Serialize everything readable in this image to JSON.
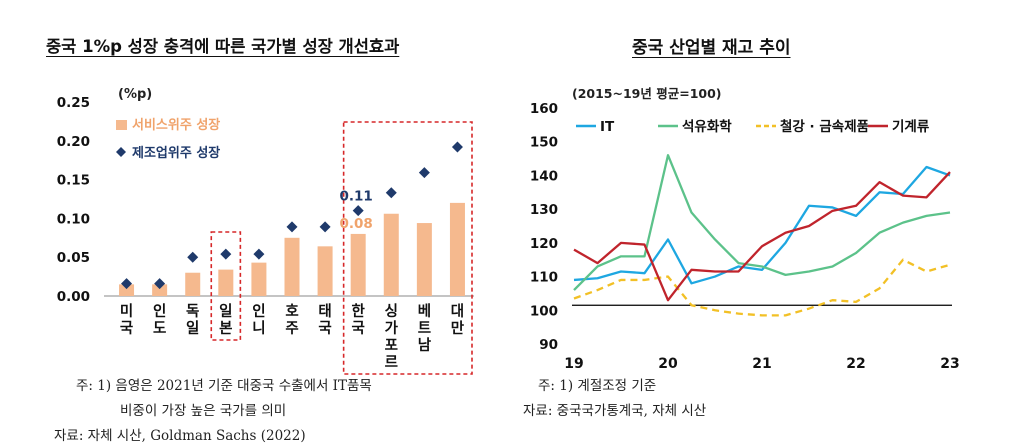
{
  "left_panel": {
    "title": "중국 1%p 성장 충격에 따른 국가별 성장 개선효과",
    "footnote_line1": "주: 1) 음영은 2021년 기준 대중국 수출에서 IT품목",
    "footnote_line2": "비중이 가장 높은 국가를 의미",
    "source": "자료: 자체 시산, Goldman Sachs (2022)"
  },
  "right_panel": {
    "title": "중국 산업별 재고 추이",
    "footnote_line1": "주: 1) 계절조정 기준",
    "source": "자료: 중국국가통계국, 자체 시산"
  },
  "colors": {
    "bar": "#f5b98e",
    "diamond": "#1f3a6b",
    "highlight_box": "#d62728",
    "IT": "#1ea7e1",
    "petrochem": "#5cc28a",
    "steel": "#f2c026",
    "machinery": "#c0242c",
    "baseline": "#000000"
  },
  "chart_data": [
    {
      "type": "bar",
      "unit_label": "(%p)",
      "categories": [
        "미국",
        "인도",
        "독일",
        "일본",
        "인니",
        "호주",
        "태국",
        "한국",
        "싱가포르",
        "베트남",
        "대만"
      ],
      "category_glyphs": [
        [
          "미",
          "국"
        ],
        [
          "인",
          "도"
        ],
        [
          "독",
          "일"
        ],
        [
          "일",
          "본"
        ],
        [
          "인",
          "니"
        ],
        [
          "호",
          "주"
        ],
        [
          "태",
          "국"
        ],
        [
          "한",
          "국"
        ],
        [
          "싱",
          "가",
          "포",
          "르"
        ],
        [
          "베",
          "트",
          "남"
        ],
        [
          "대",
          "만"
        ]
      ],
      "ylim": [
        0,
        0.25
      ],
      "yticks": [
        "0.00",
        "0.05",
        "0.10",
        "0.15",
        "0.20",
        "0.25"
      ],
      "series": [
        {
          "name": "서비스위주 성장",
          "mark": "bar",
          "values": [
            0.015,
            0.015,
            0.03,
            0.034,
            0.043,
            0.075,
            0.064,
            0.08,
            0.106,
            0.094,
            0.12
          ]
        },
        {
          "name": "제조업위주 성장",
          "mark": "diamond",
          "values": [
            0.016,
            0.016,
            0.05,
            0.054,
            0.054,
            0.089,
            0.089,
            0.11,
            0.133,
            0.159,
            0.192
          ]
        }
      ],
      "annotations": [
        {
          "category": "한국",
          "series": "제조업위주 성장",
          "text": "0.11"
        },
        {
          "category": "한국",
          "series": "서비스위주 성장",
          "text": "0.08"
        }
      ],
      "highlight_groups": [
        [
          "일본"
        ],
        [
          "한국",
          "싱가포르",
          "베트남",
          "대만"
        ]
      ],
      "legend_position": "top-left"
    },
    {
      "type": "line",
      "unit_label": "(2015~19년 평균=100)",
      "ylim": [
        90,
        160
      ],
      "yticks": [
        "90",
        "100",
        "110",
        "120",
        "130",
        "140",
        "150",
        "160"
      ],
      "xlim": [
        2019,
        2023
      ],
      "xticks": [
        {
          "x": 2019,
          "label": "19"
        },
        {
          "x": 2020,
          "label": "20"
        },
        {
          "x": 2021,
          "label": "21"
        },
        {
          "x": 2022,
          "label": "22"
        },
        {
          "x": 2023,
          "label": "23"
        }
      ],
      "baseline": 101.5,
      "legend_position": "top",
      "series": [
        {
          "name": "IT",
          "key": "IT",
          "dash": "solid",
          "x": [
            2019,
            2019.25,
            2019.5,
            2019.75,
            2020,
            2020.25,
            2020.5,
            2020.75,
            2021,
            2021.25,
            2021.5,
            2021.75,
            2022,
            2022.25,
            2022.5,
            2022.75,
            2023
          ],
          "y": [
            109,
            109.5,
            111.5,
            111,
            121,
            108,
            110,
            113,
            112,
            120,
            131,
            130.5,
            128,
            135,
            134.5,
            142.5,
            140
          ]
        },
        {
          "name": "석유화학",
          "key": "petrochem",
          "dash": "solid",
          "x": [
            2019,
            2019.25,
            2019.5,
            2019.75,
            2020,
            2020.25,
            2020.5,
            2020.75,
            2021,
            2021.25,
            2021.5,
            2021.75,
            2022,
            2022.25,
            2022.5,
            2022.75,
            2023
          ],
          "y": [
            106,
            113,
            116,
            116,
            146,
            129,
            121,
            114,
            113,
            110.5,
            111.5,
            113,
            117,
            123,
            126,
            128,
            129
          ]
        },
        {
          "name": "철강 · 금속제품",
          "key": "steel",
          "dash": "dashed",
          "x": [
            2019,
            2019.25,
            2019.5,
            2019.75,
            2020,
            2020.25,
            2020.5,
            2020.75,
            2021,
            2021.25,
            2021.5,
            2021.75,
            2022,
            2022.25,
            2022.5,
            2022.75,
            2023
          ],
          "y": [
            103.5,
            106,
            109,
            109,
            110,
            101.5,
            100,
            99,
            98.5,
            98.5,
            100.5,
            103,
            102.5,
            106.5,
            115,
            111.5,
            113.5
          ]
        },
        {
          "name": "기계류",
          "key": "machinery",
          "dash": "solid",
          "x": [
            2019,
            2019.25,
            2019.5,
            2019.75,
            2020,
            2020.25,
            2020.5,
            2020.75,
            2021,
            2021.25,
            2021.5,
            2021.75,
            2022,
            2022.25,
            2022.5,
            2022.75,
            2023
          ],
          "y": [
            118,
            114,
            120,
            119.5,
            103,
            112,
            111.5,
            111.5,
            119,
            123,
            125,
            129.5,
            131,
            138,
            134,
            133.5,
            141
          ]
        }
      ]
    }
  ]
}
